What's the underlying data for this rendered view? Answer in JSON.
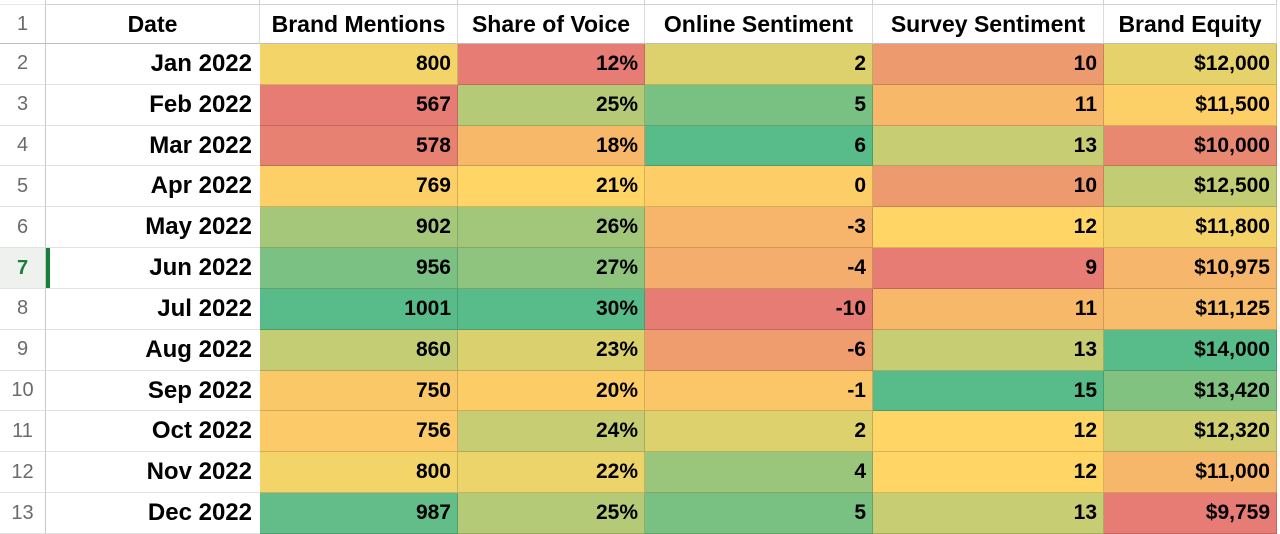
{
  "sheet": {
    "header_row_number": "1",
    "headers": [
      "Date",
      "Brand Mentions",
      "Share of Voice",
      "Online Sentiment",
      "Survey Sentiment",
      "Brand Equity"
    ],
    "selection": {
      "row": "7",
      "color": "#188038",
      "gutter_bg": "#eef1ee"
    },
    "grid_colors": {
      "gridline_white_area": "#e2e2e2",
      "gridline_colored_area": "rgba(0,0,0,0.16)",
      "gutter_border": "#c9c9c9",
      "header_underline": "#bdbdbd",
      "row_number_gray": "#6b6b6b",
      "scale_min_red": "#E67C73",
      "scale_mid_yellow": "#FFD666",
      "scale_max_green": "#57BB8A"
    },
    "rows": [
      {
        "row_number": "2",
        "date": "Jan 2022",
        "cells": [
          {
            "value": "800",
            "bg": "#F3D469"
          },
          {
            "value": "12%",
            "bg": "#E67C73"
          },
          {
            "value": "2",
            "bg": "#DDD16D"
          },
          {
            "value": "10",
            "bg": "#EE9A6F"
          },
          {
            "value": "$12,000",
            "bg": "#E6D26B"
          }
        ]
      },
      {
        "row_number": "3",
        "date": "Feb 2022",
        "cells": [
          {
            "value": "567",
            "bg": "#E67C73"
          },
          {
            "value": "25%",
            "bg": "#B4CA76"
          },
          {
            "value": "5",
            "bg": "#79C083"
          },
          {
            "value": "11",
            "bg": "#F7B86A"
          },
          {
            "value": "$11,500",
            "bg": "#FDCF67"
          }
        ]
      },
      {
        "row_number": "4",
        "date": "Mar 2022",
        "cells": [
          {
            "value": "578",
            "bg": "#E78172"
          },
          {
            "value": "18%",
            "bg": "#F7B86A"
          },
          {
            "value": "6",
            "bg": "#57BB8A"
          },
          {
            "value": "13",
            "bg": "#C7CD72"
          },
          {
            "value": "$10,000",
            "bg": "#E98871"
          }
        ]
      },
      {
        "row_number": "5",
        "date": "Apr 2022",
        "cells": [
          {
            "value": "769",
            "bg": "#FDD067"
          },
          {
            "value": "21%",
            "bg": "#FFD666"
          },
          {
            "value": "0",
            "bg": "#FDCE67"
          },
          {
            "value": "10",
            "bg": "#EE9A6F"
          },
          {
            "value": "$12,500",
            "bg": "#C2CC73"
          }
        ]
      },
      {
        "row_number": "6",
        "date": "May 2022",
        "cells": [
          {
            "value": "902",
            "bg": "#A4C77A"
          },
          {
            "value": "26%",
            "bg": "#A2C77A"
          },
          {
            "value": "-3",
            "bg": "#F6B56B"
          },
          {
            "value": "12",
            "bg": "#FFD666"
          },
          {
            "value": "$11,800",
            "bg": "#F4D468"
          }
        ]
      },
      {
        "row_number": "7",
        "date": "Jun 2022",
        "cells": [
          {
            "value": "956",
            "bg": "#7AC183"
          },
          {
            "value": "27%",
            "bg": "#8FC47E"
          },
          {
            "value": "-4",
            "bg": "#F4AD6C"
          },
          {
            "value": "9",
            "bg": "#E67C73"
          },
          {
            "value": "$10,975",
            "bg": "#F6B66B"
          }
        ]
      },
      {
        "row_number": "8",
        "date": "Jul 2022",
        "cells": [
          {
            "value": "1001",
            "bg": "#57BB8A"
          },
          {
            "value": "30%",
            "bg": "#57BB8A"
          },
          {
            "value": "-10",
            "bg": "#E67C73"
          },
          {
            "value": "11",
            "bg": "#F7B86A"
          },
          {
            "value": "$11,125",
            "bg": "#F8BD6A"
          }
        ]
      },
      {
        "row_number": "9",
        "date": "Aug 2022",
        "cells": [
          {
            "value": "860",
            "bg": "#C4CD73"
          },
          {
            "value": "23%",
            "bg": "#DAD06E"
          },
          {
            "value": "-6",
            "bg": "#EF9D6E"
          },
          {
            "value": "13",
            "bg": "#C7CD72"
          },
          {
            "value": "$14,000",
            "bg": "#57BB8A"
          }
        ]
      },
      {
        "row_number": "10",
        "date": "Sep 2022",
        "cells": [
          {
            "value": "750",
            "bg": "#FBC868"
          },
          {
            "value": "20%",
            "bg": "#FCCC67"
          },
          {
            "value": "-1",
            "bg": "#FAC668"
          },
          {
            "value": "15",
            "bg": "#57BB8A"
          },
          {
            "value": "$13,420",
            "bg": "#81C281"
          }
        ]
      },
      {
        "row_number": "11",
        "date": "Oct 2022",
        "cells": [
          {
            "value": "756",
            "bg": "#FCCA68"
          },
          {
            "value": "24%",
            "bg": "#C7CD72"
          },
          {
            "value": "2",
            "bg": "#DDD16D"
          },
          {
            "value": "12",
            "bg": "#FFD666"
          },
          {
            "value": "$12,320",
            "bg": "#CFCE70"
          }
        ]
      },
      {
        "row_number": "12",
        "date": "Nov 2022",
        "cells": [
          {
            "value": "800",
            "bg": "#F3D469"
          },
          {
            "value": "22%",
            "bg": "#ECD36A"
          },
          {
            "value": "4",
            "bg": "#9AC67C"
          },
          {
            "value": "12",
            "bg": "#FFD666"
          },
          {
            "value": "$11,000",
            "bg": "#F6B76B"
          }
        ]
      },
      {
        "row_number": "13",
        "date": "Dec 2022",
        "cells": [
          {
            "value": "987",
            "bg": "#62BD88"
          },
          {
            "value": "25%",
            "bg": "#B4CA76"
          },
          {
            "value": "5",
            "bg": "#79C083"
          },
          {
            "value": "13",
            "bg": "#C7CD72"
          },
          {
            "value": "$9,759",
            "bg": "#E67C73"
          }
        ]
      }
    ]
  }
}
